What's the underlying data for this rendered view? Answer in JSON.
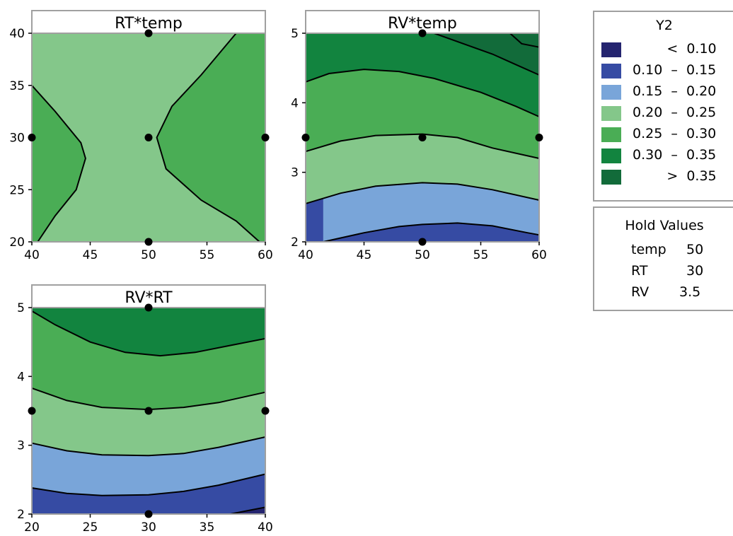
{
  "chart_data": [
    {
      "type": "contour",
      "title": "RT*temp",
      "x": {
        "range": [
          40,
          60
        ],
        "ticks": [
          40,
          45,
          50,
          55,
          60
        ]
      },
      "y": {
        "range": [
          20,
          40
        ],
        "ticks": [
          20,
          25,
          30,
          35,
          40
        ]
      },
      "design_points": [
        [
          50,
          40
        ],
        [
          40,
          30
        ],
        [
          50,
          30
        ],
        [
          60,
          30
        ],
        [
          50,
          20
        ]
      ],
      "regions": [
        {
          "level": "0.20 - 0.25",
          "description": "central band"
        },
        {
          "level": "0.25 - 0.30",
          "description": "left and right sides"
        }
      ]
    },
    {
      "type": "contour",
      "title": "RV*temp",
      "x": {
        "range": [
          40,
          60
        ],
        "ticks": [
          40,
          45,
          50,
          55,
          60
        ]
      },
      "y": {
        "range": [
          2,
          5
        ],
        "ticks": [
          2,
          3,
          4,
          5
        ]
      },
      "design_points": [
        [
          50,
          5
        ],
        [
          40,
          3.5
        ],
        [
          50,
          3.5
        ],
        [
          60,
          3.5
        ],
        [
          50,
          2
        ]
      ],
      "contours": [
        {
          "level": 0.1,
          "points": [
            [
              41.5,
              2
            ],
            [
              45,
              2.13
            ],
            [
              48,
              2.22
            ],
            [
              50,
              2.25
            ],
            [
              53,
              2.27
            ],
            [
              56,
              2.23
            ],
            [
              59,
              2.13
            ],
            [
              60,
              2.1
            ]
          ]
        },
        {
          "level": 0.15,
          "points": [
            [
              40,
              2.55
            ],
            [
              43,
              2.7
            ],
            [
              46,
              2.8
            ],
            [
              50,
              2.85
            ],
            [
              53,
              2.83
            ],
            [
              56,
              2.75
            ],
            [
              60,
              2.6
            ]
          ]
        },
        {
          "level": 0.2,
          "points": [
            [
              40,
              3.3
            ],
            [
              43,
              3.45
            ],
            [
              46,
              3.53
            ],
            [
              50,
              3.55
            ],
            [
              53,
              3.5
            ],
            [
              56,
              3.35
            ],
            [
              60,
              3.2
            ]
          ]
        },
        {
          "level": 0.25,
          "points": [
            [
              40,
              4.3
            ],
            [
              42,
              4.42
            ],
            [
              45,
              4.48
            ],
            [
              48,
              4.45
            ],
            [
              51,
              4.35
            ],
            [
              55,
              4.15
            ],
            [
              58,
              3.95
            ],
            [
              60,
              3.8
            ]
          ]
        },
        {
          "level": 0.3,
          "points": [
            [
              51,
              5
            ],
            [
              53.5,
              4.85
            ],
            [
              56,
              4.7
            ],
            [
              58,
              4.55
            ],
            [
              60,
              4.4
            ]
          ]
        },
        {
          "level": 0.35,
          "points": [
            [
              57.5,
              5
            ],
            [
              58.5,
              4.85
            ],
            [
              60,
              4.8
            ]
          ]
        }
      ]
    },
    {
      "type": "contour",
      "title": "RV*RT",
      "x": {
        "range": [
          20,
          40
        ],
        "ticks": [
          20,
          25,
          30,
          35,
          40
        ]
      },
      "y": {
        "range": [
          2,
          5
        ],
        "ticks": [
          2,
          3,
          4,
          5
        ]
      },
      "design_points": [
        [
          30,
          5
        ],
        [
          20,
          3.5
        ],
        [
          30,
          3.5
        ],
        [
          40,
          3.5
        ],
        [
          30,
          2
        ]
      ],
      "contours": [
        {
          "level": 0.1,
          "points": [
            [
              37,
              2
            ],
            [
              38.5,
              2.05
            ],
            [
              40,
              2.1
            ]
          ]
        },
        {
          "level": 0.15,
          "points": [
            [
              20,
              2.38
            ],
            [
              23,
              2.3
            ],
            [
              26,
              2.27
            ],
            [
              30,
              2.28
            ],
            [
              33,
              2.33
            ],
            [
              36,
              2.42
            ],
            [
              40,
              2.58
            ]
          ]
        },
        {
          "level": 0.2,
          "points": [
            [
              20,
              3.03
            ],
            [
              23,
              2.92
            ],
            [
              26,
              2.86
            ],
            [
              30,
              2.85
            ],
            [
              33,
              2.88
            ],
            [
              36,
              2.97
            ],
            [
              40,
              3.12
            ]
          ]
        },
        {
          "level": 0.25,
          "points": [
            [
              20,
              3.83
            ],
            [
              23,
              3.65
            ],
            [
              26,
              3.55
            ],
            [
              30,
              3.52
            ],
            [
              33,
              3.55
            ],
            [
              36,
              3.62
            ],
            [
              40,
              3.77
            ]
          ]
        },
        {
          "level": 0.3,
          "points": [
            [
              20,
              4.95
            ],
            [
              22,
              4.75
            ],
            [
              25,
              4.5
            ],
            [
              28,
              4.35
            ],
            [
              31,
              4.3
            ],
            [
              34,
              4.35
            ],
            [
              37,
              4.45
            ],
            [
              40,
              4.55
            ]
          ]
        }
      ]
    }
  ],
  "legend": {
    "title": "Y2",
    "items": [
      {
        "label": "        <  0.10",
        "color": "#24246f"
      },
      {
        "label": "0.10  –  0.15",
        "color": "#364ba3"
      },
      {
        "label": "0.15  –  0.20",
        "color": "#79a5d9"
      },
      {
        "label": "0.20  –  0.25",
        "color": "#84c78a"
      },
      {
        "label": "0.25  –  0.30",
        "color": "#4aad55"
      },
      {
        "label": "0.30  –  0.35",
        "color": "#12843f"
      },
      {
        "label": "        >  0.35",
        "color": "#126b3a"
      }
    ]
  },
  "hold_values": {
    "title": "Hold Values",
    "rows": [
      {
        "name": "temp",
        "value": "50"
      },
      {
        "name": "RT",
        "value": "30"
      },
      {
        "name": "RV",
        "value": "3.5"
      }
    ]
  }
}
